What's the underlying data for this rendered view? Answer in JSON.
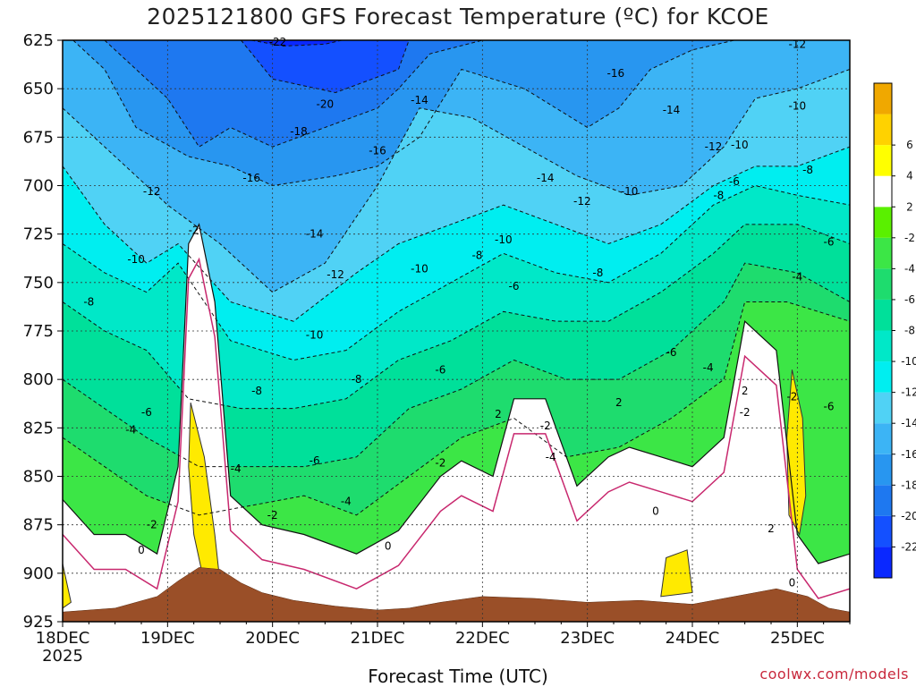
{
  "title": "2025121800 GFS Forecast Temperature (ºC) for KCOE",
  "credit": "coolwx.com/models",
  "chart_data": {
    "type": "heatmap",
    "title": "2025121800 GFS Forecast Temperature (ºC) for KCOE",
    "xlabel": "Forecast Time (UTC)",
    "ylabel": "",
    "x_ticks": [
      "18DEC",
      "19DEC",
      "20DEC",
      "21DEC",
      "22DEC",
      "23DEC",
      "24DEC",
      "25DEC"
    ],
    "x_sub": "2025",
    "xlim_days": [
      0,
      7.5
    ],
    "y_ticks": [
      625,
      650,
      675,
      700,
      725,
      750,
      775,
      800,
      825,
      850,
      875,
      900,
      925
    ],
    "ylim_hpa": [
      625,
      925
    ],
    "y_inverted": true,
    "grid": true,
    "colorbar": {
      "levels": [
        -24,
        -22,
        -20,
        -18,
        -16,
        -14,
        -12,
        -10,
        -8,
        -6,
        -4,
        -2,
        2,
        4,
        6,
        8
      ],
      "labels": [
        "-22",
        "-20",
        "-18",
        "-16",
        "-14",
        "-12",
        "-10",
        "-8",
        "-6",
        "-4",
        "-2",
        "2",
        "4",
        "6"
      ],
      "label_values": [
        -22,
        -20,
        -18,
        -16,
        -14,
        -12,
        -10,
        -8,
        -6,
        -4,
        -2,
        2,
        4,
        6
      ],
      "colors": [
        "#0a28ff",
        "#1450ff",
        "#1e78f0",
        "#2896f0",
        "#3cb4f5",
        "#50d2f5",
        "#00eef0",
        "#00e8c8",
        "#00e09a",
        "#1edc6e",
        "#3ce646",
        "#5af000",
        "#ffffff",
        "#ffff00",
        "#ffd200",
        "#f0a800"
      ]
    },
    "terrain_color": "#9a4f28",
    "surface_pressure_hpa": [
      [
        0,
        920
      ],
      [
        0.5,
        918
      ],
      [
        0.9,
        912
      ],
      [
        1.1,
        904
      ],
      [
        1.3,
        897
      ],
      [
        1.5,
        898
      ],
      [
        1.7,
        905
      ],
      [
        1.9,
        910
      ],
      [
        2.2,
        914
      ],
      [
        2.6,
        917
      ],
      [
        3.0,
        919
      ],
      [
        3.3,
        918
      ],
      [
        3.6,
        915
      ],
      [
        4.0,
        912
      ],
      [
        4.5,
        913
      ],
      [
        5.0,
        915
      ],
      [
        5.5,
        914
      ],
      [
        6.0,
        916
      ],
      [
        6.4,
        912
      ],
      [
        6.8,
        908
      ],
      [
        7.1,
        912
      ],
      [
        7.3,
        918
      ],
      [
        7.5,
        920
      ]
    ],
    "isotherm_series": [
      {
        "label": -22,
        "points": [
          [
            1.8,
            625
          ],
          [
            2.1,
            628
          ],
          [
            2.5,
            627
          ],
          [
            2.9,
            622
          ]
        ]
      },
      {
        "label": -20,
        "points": [
          [
            1.7,
            625
          ],
          [
            2.0,
            645
          ],
          [
            2.6,
            652
          ],
          [
            3.2,
            640
          ],
          [
            3.3,
            625
          ]
        ]
      },
      {
        "label": -18,
        "points": [
          [
            0.4,
            625
          ],
          [
            0.7,
            640
          ],
          [
            1.0,
            655
          ],
          [
            1.3,
            680
          ],
          [
            1.6,
            670
          ],
          [
            2.0,
            680
          ],
          [
            2.5,
            670
          ],
          [
            3.0,
            660
          ],
          [
            3.2,
            650
          ],
          [
            3.5,
            632
          ],
          [
            4.0,
            625
          ]
        ]
      },
      {
        "label": -16,
        "points": [
          [
            0.1,
            625
          ],
          [
            0.4,
            640
          ],
          [
            0.7,
            670
          ],
          [
            1.2,
            685
          ],
          [
            1.6,
            690
          ],
          [
            2.0,
            700
          ],
          [
            2.6,
            695
          ],
          [
            3.0,
            690
          ],
          [
            3.4,
            675
          ],
          [
            3.8,
            640
          ],
          [
            4.4,
            650
          ],
          [
            5.0,
            670
          ],
          [
            5.3,
            660
          ],
          [
            5.6,
            640
          ],
          [
            6.0,
            630
          ],
          [
            6.4,
            625
          ]
        ]
      },
      {
        "label": -14,
        "points": [
          [
            0.0,
            660
          ],
          [
            0.4,
            680
          ],
          [
            0.8,
            700
          ],
          [
            1.0,
            710
          ],
          [
            1.5,
            730
          ],
          [
            2.0,
            755
          ],
          [
            2.5,
            740
          ],
          [
            3.0,
            700
          ],
          [
            3.4,
            660
          ],
          [
            3.9,
            665
          ],
          [
            4.4,
            680
          ],
          [
            4.9,
            695
          ],
          [
            5.4,
            705
          ],
          [
            5.9,
            700
          ],
          [
            6.3,
            680
          ],
          [
            6.6,
            655
          ],
          [
            7.0,
            650
          ],
          [
            7.5,
            640
          ]
        ]
      },
      {
        "label": -12,
        "points": [
          [
            0.0,
            690
          ],
          [
            0.4,
            720
          ],
          [
            0.8,
            740
          ],
          [
            1.1,
            730
          ],
          [
            1.6,
            760
          ],
          [
            2.2,
            770
          ],
          [
            2.8,
            745
          ],
          [
            3.2,
            730
          ],
          [
            3.7,
            720
          ],
          [
            4.2,
            710
          ],
          [
            4.7,
            720
          ],
          [
            5.2,
            730
          ],
          [
            5.7,
            720
          ],
          [
            6.2,
            700
          ],
          [
            6.6,
            690
          ],
          [
            7.0,
            690
          ],
          [
            7.5,
            680
          ]
        ]
      },
      {
        "label": -10,
        "points": [
          [
            0.0,
            730
          ],
          [
            0.4,
            745
          ],
          [
            0.8,
            755
          ],
          [
            1.1,
            740
          ],
          [
            1.6,
            780
          ],
          [
            2.2,
            790
          ],
          [
            2.7,
            785
          ],
          [
            3.2,
            765
          ],
          [
            3.7,
            750
          ],
          [
            4.2,
            735
          ],
          [
            4.7,
            745
          ],
          [
            5.2,
            750
          ],
          [
            5.7,
            735
          ],
          [
            6.2,
            710
          ],
          [
            6.6,
            700
          ],
          [
            7.0,
            705
          ],
          [
            7.5,
            710
          ]
        ]
      },
      {
        "label": -8,
        "points": [
          [
            0.0,
            760
          ],
          [
            0.4,
            775
          ],
          [
            0.8,
            785
          ],
          [
            1.2,
            810
          ],
          [
            1.7,
            815
          ],
          [
            2.2,
            815
          ],
          [
            2.7,
            810
          ],
          [
            3.2,
            790
          ],
          [
            3.7,
            780
          ],
          [
            4.2,
            765
          ],
          [
            4.7,
            770
          ],
          [
            5.2,
            770
          ],
          [
            5.7,
            755
          ],
          [
            6.2,
            735
          ],
          [
            6.5,
            720
          ],
          [
            7.0,
            720
          ],
          [
            7.5,
            730
          ]
        ]
      },
      {
        "label": -6,
        "points": [
          [
            0.0,
            800
          ],
          [
            0.4,
            815
          ],
          [
            0.8,
            830
          ],
          [
            1.3,
            845
          ],
          [
            1.8,
            845
          ],
          [
            2.3,
            845
          ],
          [
            2.8,
            840
          ],
          [
            3.3,
            815
          ],
          [
            3.8,
            805
          ],
          [
            4.3,
            790
          ],
          [
            4.8,
            800
          ],
          [
            5.3,
            800
          ],
          [
            5.8,
            785
          ],
          [
            6.3,
            760
          ],
          [
            6.5,
            740
          ],
          [
            7.0,
            745
          ],
          [
            7.5,
            760
          ]
        ]
      },
      {
        "label": -4,
        "points": [
          [
            0.0,
            830
          ],
          [
            0.4,
            845
          ],
          [
            0.8,
            860
          ],
          [
            1.3,
            870
          ],
          [
            1.8,
            865
          ],
          [
            2.3,
            860
          ],
          [
            2.8,
            870
          ],
          [
            3.3,
            850
          ],
          [
            3.8,
            830
          ],
          [
            4.3,
            820
          ],
          [
            4.8,
            840
          ],
          [
            5.3,
            835
          ],
          [
            5.8,
            820
          ],
          [
            6.3,
            800
          ],
          [
            6.5,
            760
          ],
          [
            6.9,
            760
          ],
          [
            7.5,
            770
          ]
        ]
      }
    ],
    "freezing_line": [
      [
        0.0,
        862
      ],
      [
        0.3,
        880
      ],
      [
        0.6,
        880
      ],
      [
        0.9,
        890
      ],
      [
        1.1,
        845
      ],
      [
        1.2,
        730
      ],
      [
        1.3,
        720
      ],
      [
        1.45,
        760
      ],
      [
        1.6,
        860
      ],
      [
        1.9,
        875
      ],
      [
        2.3,
        880
      ],
      [
        2.8,
        890
      ],
      [
        3.2,
        878
      ],
      [
        3.6,
        850
      ],
      [
        3.8,
        842
      ],
      [
        4.1,
        850
      ],
      [
        4.3,
        810
      ],
      [
        4.6,
        810
      ],
      [
        4.9,
        855
      ],
      [
        5.2,
        840
      ],
      [
        5.4,
        835
      ],
      [
        5.7,
        840
      ],
      [
        6.0,
        845
      ],
      [
        6.3,
        830
      ],
      [
        6.5,
        770
      ],
      [
        6.8,
        785
      ],
      [
        7.0,
        880
      ],
      [
        7.2,
        895
      ],
      [
        7.5,
        890
      ]
    ],
    "contour_labels": [
      {
        "text": "-22",
        "x": 2.05,
        "y": 626
      },
      {
        "text": "-20",
        "x": 2.5,
        "y": 658
      },
      {
        "text": "-18",
        "x": 2.25,
        "y": 672
      },
      {
        "text": "-16",
        "x": 1.8,
        "y": 696
      },
      {
        "text": "-16",
        "x": 3.0,
        "y": 682
      },
      {
        "text": "-16",
        "x": 5.27,
        "y": 642
      },
      {
        "text": "-14",
        "x": 3.4,
        "y": 656
      },
      {
        "text": "-14",
        "x": 2.4,
        "y": 725
      },
      {
        "text": "-14",
        "x": 4.6,
        "y": 696
      },
      {
        "text": "-14",
        "x": 5.8,
        "y": 661
      },
      {
        "text": "-12",
        "x": 0.85,
        "y": 703
      },
      {
        "text": "-12",
        "x": 2.6,
        "y": 746
      },
      {
        "text": "-12",
        "x": 4.95,
        "y": 708
      },
      {
        "text": "-12",
        "x": 6.2,
        "y": 680
      },
      {
        "text": "-12",
        "x": 7.0,
        "y": 627
      },
      {
        "text": "-10",
        "x": 0.7,
        "y": 738
      },
      {
        "text": "-10",
        "x": 2.4,
        "y": 777
      },
      {
        "text": "-10",
        "x": 3.4,
        "y": 743
      },
      {
        "text": "-10",
        "x": 4.2,
        "y": 728
      },
      {
        "text": "-10",
        "x": 5.4,
        "y": 703
      },
      {
        "text": "-10",
        "x": 6.45,
        "y": 679
      },
      {
        "text": "-10",
        "x": 7.0,
        "y": 659
      },
      {
        "text": "-8",
        "x": 0.25,
        "y": 760
      },
      {
        "text": "-8",
        "x": 1.85,
        "y": 806
      },
      {
        "text": "-8",
        "x": 2.8,
        "y": 800
      },
      {
        "text": "-8",
        "x": 3.95,
        "y": 736
      },
      {
        "text": "-8",
        "x": 5.1,
        "y": 745
      },
      {
        "text": "-8",
        "x": 6.25,
        "y": 705
      },
      {
        "text": "-8",
        "x": 7.1,
        "y": 692
      },
      {
        "text": "-6",
        "x": 0.8,
        "y": 817
      },
      {
        "text": "-6",
        "x": 2.4,
        "y": 842
      },
      {
        "text": "-6",
        "x": 3.6,
        "y": 795
      },
      {
        "text": "-6",
        "x": 4.3,
        "y": 752
      },
      {
        "text": "-6",
        "x": 5.8,
        "y": 786
      },
      {
        "text": "-6",
        "x": 6.4,
        "y": 698
      },
      {
        "text": "-6",
        "x": 7.3,
        "y": 729
      },
      {
        "text": "-6",
        "x": 7.3,
        "y": 814
      },
      {
        "text": "-4",
        "x": 0.65,
        "y": 826
      },
      {
        "text": "-4",
        "x": 1.65,
        "y": 846
      },
      {
        "text": "-4",
        "x": 2.7,
        "y": 863
      },
      {
        "text": "-4",
        "x": 4.65,
        "y": 840
      },
      {
        "text": "-4",
        "x": 6.15,
        "y": 794
      },
      {
        "text": "-4",
        "x": 7.0,
        "y": 747
      },
      {
        "text": "-2",
        "x": 1.25,
        "y": 723
      },
      {
        "text": "-2",
        "x": 0.85,
        "y": 875
      },
      {
        "text": "-2",
        "x": 2.0,
        "y": 870
      },
      {
        "text": "-2",
        "x": 3.6,
        "y": 843
      },
      {
        "text": "-2",
        "x": 4.6,
        "y": 824
      },
      {
        "text": "-2",
        "x": 6.5,
        "y": 817
      },
      {
        "text": "-2",
        "x": 6.95,
        "y": 809
      },
      {
        "text": "2",
        "x": 4.15,
        "y": 818
      },
      {
        "text": "2",
        "x": 5.3,
        "y": 812
      },
      {
        "text": "2",
        "x": 6.5,
        "y": 806
      },
      {
        "text": "2",
        "x": 6.75,
        "y": 877
      },
      {
        "text": "0",
        "x": 0.75,
        "y": 888
      },
      {
        "text": "0",
        "x": 3.1,
        "y": 886
      },
      {
        "text": "0",
        "x": 5.65,
        "y": 868
      },
      {
        "text": "0",
        "x": 6.95,
        "y": 905
      }
    ]
  }
}
